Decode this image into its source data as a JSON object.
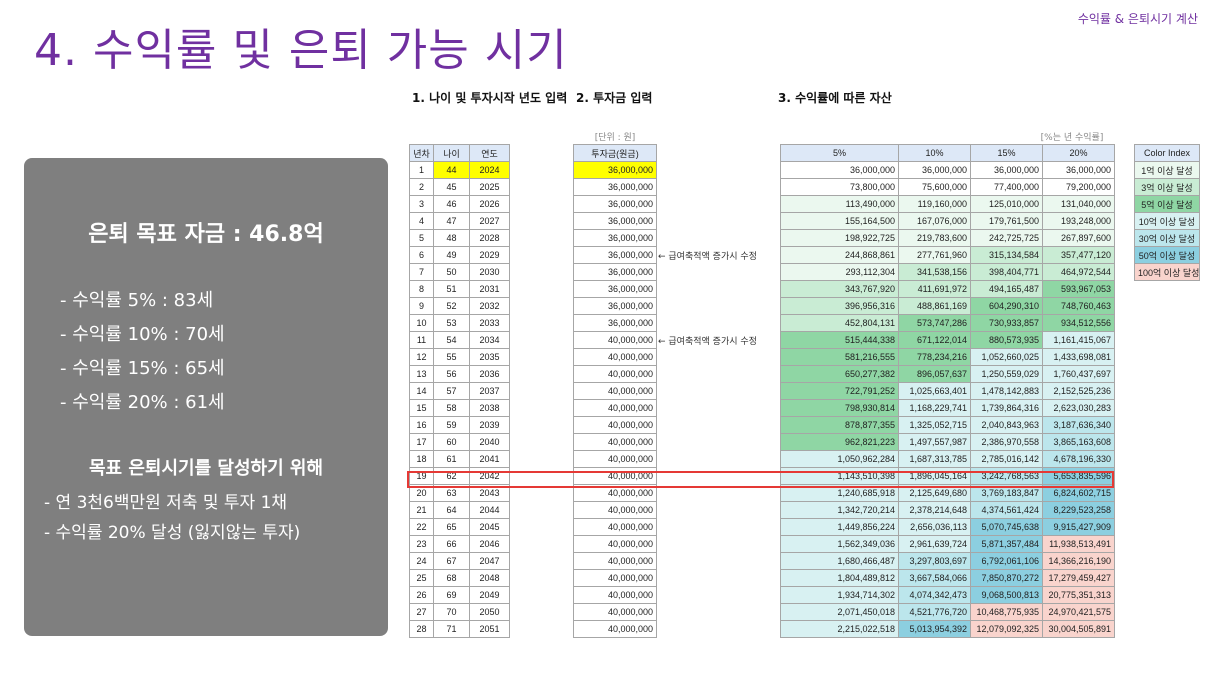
{
  "header": {
    "corner_label": "수익률 & 은퇴시기 계산",
    "title": "4. 수익률 및 은퇴 가능 시기"
  },
  "panel": {
    "goal": "은퇴 목표 자금 : 46.8억",
    "rates": [
      "- 수익률   5% : 83세",
      "- 수익률 10% : 70세",
      "- 수익률 15% : 65세",
      "- 수익률 20% : 61세"
    ],
    "subtitle": "목표 은퇴시기를 달성하기 위해",
    "actions": [
      "- 연 3천6백만원 저축 및 투자 1채",
      "- 수익률 20% 달성 (잃지않는 투자)"
    ]
  },
  "sections": {
    "s1": "1. 나이 및 투자시작 년도 입력",
    "s2": "2. 투자금 입력",
    "s3": "3. 수익률에 따른 자산"
  },
  "units": {
    "invest": "[단위 : 원]",
    "rate": "[%는 년 수익률]"
  },
  "age_table": {
    "headers": [
      "년차",
      "나이",
      "연도"
    ],
    "rows": [
      [
        "1",
        "44",
        "2024"
      ],
      [
        "2",
        "45",
        "2025"
      ],
      [
        "3",
        "46",
        "2026"
      ],
      [
        "4",
        "47",
        "2027"
      ],
      [
        "5",
        "48",
        "2028"
      ],
      [
        "6",
        "49",
        "2029"
      ],
      [
        "7",
        "50",
        "2030"
      ],
      [
        "8",
        "51",
        "2031"
      ],
      [
        "9",
        "52",
        "2032"
      ],
      [
        "10",
        "53",
        "2033"
      ],
      [
        "11",
        "54",
        "2034"
      ],
      [
        "12",
        "55",
        "2035"
      ],
      [
        "13",
        "56",
        "2036"
      ],
      [
        "14",
        "57",
        "2037"
      ],
      [
        "15",
        "58",
        "2038"
      ],
      [
        "16",
        "59",
        "2039"
      ],
      [
        "17",
        "60",
        "2040"
      ],
      [
        "18",
        "61",
        "2041"
      ],
      [
        "19",
        "62",
        "2042"
      ],
      [
        "20",
        "63",
        "2043"
      ],
      [
        "21",
        "64",
        "2044"
      ],
      [
        "22",
        "65",
        "2045"
      ],
      [
        "23",
        "66",
        "2046"
      ],
      [
        "24",
        "67",
        "2047"
      ],
      [
        "25",
        "68",
        "2048"
      ],
      [
        "26",
        "69",
        "2049"
      ],
      [
        "27",
        "70",
        "2050"
      ],
      [
        "28",
        "71",
        "2051"
      ]
    ]
  },
  "invest_table": {
    "header": "투자금(원금)",
    "values": [
      "36,000,000",
      "36,000,000",
      "36,000,000",
      "36,000,000",
      "36,000,000",
      "36,000,000",
      "36,000,000",
      "36,000,000",
      "36,000,000",
      "36,000,000",
      "40,000,000",
      "40,000,000",
      "40,000,000",
      "40,000,000",
      "40,000,000",
      "40,000,000",
      "40,000,000",
      "40,000,000",
      "40,000,000",
      "40,000,000",
      "40,000,000",
      "40,000,000",
      "40,000,000",
      "40,000,000",
      "40,000,000",
      "40,000,000",
      "40,000,000",
      "40,000,000"
    ],
    "notes": [
      {
        "row": 6,
        "text": "← 급여축적액 증가시 수정"
      },
      {
        "row": 11,
        "text": "← 급여축적액 증가시 수정"
      }
    ]
  },
  "asset_table": {
    "headers": [
      "5%",
      "10%",
      "15%",
      "20%"
    ],
    "rows": [
      [
        "36,000,000",
        "36,000,000",
        "36,000,000",
        "36,000,000"
      ],
      [
        "73,800,000",
        "75,600,000",
        "77,400,000",
        "79,200,000"
      ],
      [
        "113,490,000",
        "119,160,000",
        "125,010,000",
        "131,040,000"
      ],
      [
        "155,164,500",
        "167,076,000",
        "179,761,500",
        "193,248,000"
      ],
      [
        "198,922,725",
        "219,783,600",
        "242,725,725",
        "267,897,600"
      ],
      [
        "244,868,861",
        "277,761,960",
        "315,134,584",
        "357,477,120"
      ],
      [
        "293,112,304",
        "341,538,156",
        "398,404,771",
        "464,972,544"
      ],
      [
        "343,767,920",
        "411,691,972",
        "494,165,487",
        "593,967,053"
      ],
      [
        "396,956,316",
        "488,861,169",
        "604,290,310",
        "748,760,463"
      ],
      [
        "452,804,131",
        "573,747,286",
        "730,933,857",
        "934,512,556"
      ],
      [
        "515,444,338",
        "671,122,014",
        "880,573,935",
        "1,161,415,067"
      ],
      [
        "581,216,555",
        "778,234,216",
        "1,052,660,025",
        "1,433,698,081"
      ],
      [
        "650,277,382",
        "896,057,637",
        "1,250,559,029",
        "1,760,437,697"
      ],
      [
        "722,791,252",
        "1,025,663,401",
        "1,478,142,883",
        "2,152,525,236"
      ],
      [
        "798,930,814",
        "1,168,229,741",
        "1,739,864,316",
        "2,623,030,283"
      ],
      [
        "878,877,355",
        "1,325,052,715",
        "2,040,843,963",
        "3,187,636,340"
      ],
      [
        "962,821,223",
        "1,497,557,987",
        "2,386,970,558",
        "3,865,163,608"
      ],
      [
        "1,050,962,284",
        "1,687,313,785",
        "2,785,016,142",
        "4,678,196,330"
      ],
      [
        "1,143,510,398",
        "1,896,045,164",
        "3,242,768,563",
        "5,653,835,596"
      ],
      [
        "1,240,685,918",
        "2,125,649,680",
        "3,769,183,847",
        "6,824,602,715"
      ],
      [
        "1,342,720,214",
        "2,378,214,648",
        "4,374,561,424",
        "8,229,523,258"
      ],
      [
        "1,449,856,224",
        "2,656,036,113",
        "5,070,745,638",
        "9,915,427,909"
      ],
      [
        "1,562,349,036",
        "2,961,639,724",
        "5,871,357,484",
        "11,938,513,491"
      ],
      [
        "1,680,466,487",
        "3,297,803,697",
        "6,792,061,106",
        "14,366,216,190"
      ],
      [
        "1,804,489,812",
        "3,667,584,066",
        "7,850,870,272",
        "17,279,459,427"
      ],
      [
        "1,934,714,302",
        "4,074,342,473",
        "9,068,500,813",
        "20,775,351,313"
      ],
      [
        "2,071,450,018",
        "4,521,776,720",
        "10,468,775,935",
        "24,970,421,575"
      ],
      [
        "2,215,022,518",
        "5,013,954,392",
        "12,079,092,325",
        "30,004,505,891"
      ]
    ]
  },
  "color_index": {
    "header": "Color Index",
    "items": [
      "1억 이상 달성",
      "3억 이상 달성",
      "5억 이상 달성",
      "10억 이상 달성",
      "30억 이상 달성",
      "50억 이상 달성",
      "100억 이상 달성"
    ],
    "colors": [
      "#ebf8ef",
      "#c9ecd4",
      "#8fd6a4",
      "#d8f1f2",
      "#bce6ec",
      "#8ccfe0",
      "#f9d4cd"
    ]
  },
  "highlight_row": 18
}
